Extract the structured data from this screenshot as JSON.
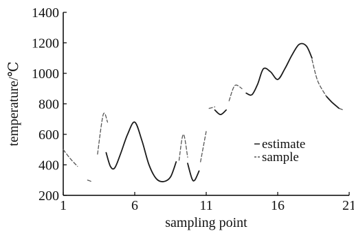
{
  "chart_data": {
    "type": "line",
    "title": "",
    "xlabel": "sampling point",
    "ylabel": "temperature/℃",
    "xlim": [
      1,
      21
    ],
    "ylim": [
      200,
      1400
    ],
    "xticks": [
      1,
      6,
      11,
      16,
      21
    ],
    "xtick_labels": [
      "1",
      "6",
      "11",
      "16",
      "21"
    ],
    "yticks": [
      200,
      400,
      600,
      800,
      1000,
      1200,
      1400
    ],
    "ytick_labels": [
      "200",
      "400",
      "600",
      "800",
      "1000",
      "1200",
      "1400"
    ],
    "grid": false,
    "legend_position": "right",
    "colors": {
      "estimate": "#1a1a1a",
      "sample": "#555555"
    },
    "series": [
      {
        "name": "estimate",
        "style": "solid",
        "segments": [
          [
            [
              4.0,
              480
            ],
            [
              4.3,
              390
            ],
            [
              4.6,
              380
            ],
            [
              5.0,
              470
            ],
            [
              5.5,
              600
            ],
            [
              6.0,
              680
            ],
            [
              6.5,
              560
            ],
            [
              7.0,
              400
            ],
            [
              7.5,
              310
            ],
            [
              8.0,
              290
            ],
            [
              8.5,
              320
            ],
            [
              8.9,
              420
            ]
          ],
          [
            [
              9.7,
              410
            ],
            [
              10.0,
              310
            ],
            [
              10.2,
              300
            ],
            [
              10.5,
              360
            ]
          ],
          [
            [
              11.6,
              760
            ],
            [
              12.0,
              730
            ],
            [
              12.4,
              760
            ]
          ],
          [
            [
              13.8,
              870
            ],
            [
              14.2,
              860
            ],
            [
              14.6,
              930
            ],
            [
              15.0,
              1030
            ],
            [
              15.5,
              1010
            ],
            [
              16.0,
              960
            ],
            [
              16.5,
              1030
            ],
            [
              17.0,
              1120
            ],
            [
              17.5,
              1190
            ],
            [
              18.0,
              1180
            ],
            [
              18.4,
              1100
            ]
          ],
          [
            [
              19.4,
              850
            ],
            [
              19.8,
              810
            ],
            [
              20.3,
              770
            ]
          ]
        ]
      },
      {
        "name": "sample",
        "style": "dashed",
        "segments": [
          [
            [
              1.0,
              500
            ],
            [
              1.5,
              440
            ],
            [
              2.0,
              390
            ]
          ],
          [
            [
              2.7,
              300
            ],
            [
              3.0,
              290
            ]
          ],
          [
            [
              3.4,
              470
            ],
            [
              3.8,
              730
            ],
            [
              4.1,
              680
            ]
          ],
          [
            [
              9.1,
              430
            ],
            [
              9.4,
              600
            ],
            [
              9.7,
              450
            ]
          ],
          [
            [
              10.6,
              420
            ],
            [
              11.0,
              620
            ]
          ],
          [
            [
              11.2,
              770
            ],
            [
              11.6,
              780
            ]
          ],
          [
            [
              12.6,
              820
            ],
            [
              13.0,
              920
            ],
            [
              13.5,
              900
            ]
          ],
          [
            [
              18.4,
              1090
            ],
            [
              18.8,
              950
            ],
            [
              19.4,
              850
            ]
          ],
          [
            [
              20.3,
              770
            ],
            [
              20.6,
              760
            ]
          ]
        ]
      }
    ]
  }
}
